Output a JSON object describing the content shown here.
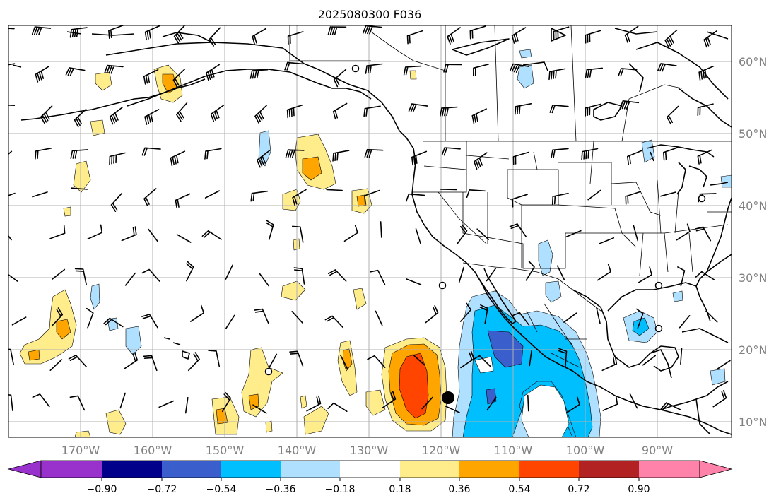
{
  "title": "2025080300 F036",
  "lat_labels": [
    "60°N",
    "50°N",
    "40°N",
    "30°N",
    "20°N",
    "10°N"
  ],
  "lon_labels": [
    "170°W",
    "160°W",
    "150°W",
    "140°W",
    "130°W",
    "120°W",
    "110°W",
    "100°W",
    "90°W"
  ],
  "colorbar": {
    "tick_labels": [
      "−0.90",
      "−0.72",
      "−0.54",
      "−0.36",
      "−0.18",
      "0.18",
      "0.36",
      "0.54",
      "0.72",
      "0.90"
    ],
    "colors": {
      "under": "#9932cc",
      "n090": "#00008b",
      "n072": "#3a5fcd",
      "n054": "#00bfff",
      "n036": "#b0e0ff",
      "zero": "#ffffff",
      "p018": "#ffec8b",
      "p036": "#ffa500",
      "p054": "#ff4500",
      "p072": "#b22222",
      "over": "#ff82ab"
    }
  },
  "colors": {
    "grid": "#b0b0b0",
    "axis_label": "#808080"
  }
}
